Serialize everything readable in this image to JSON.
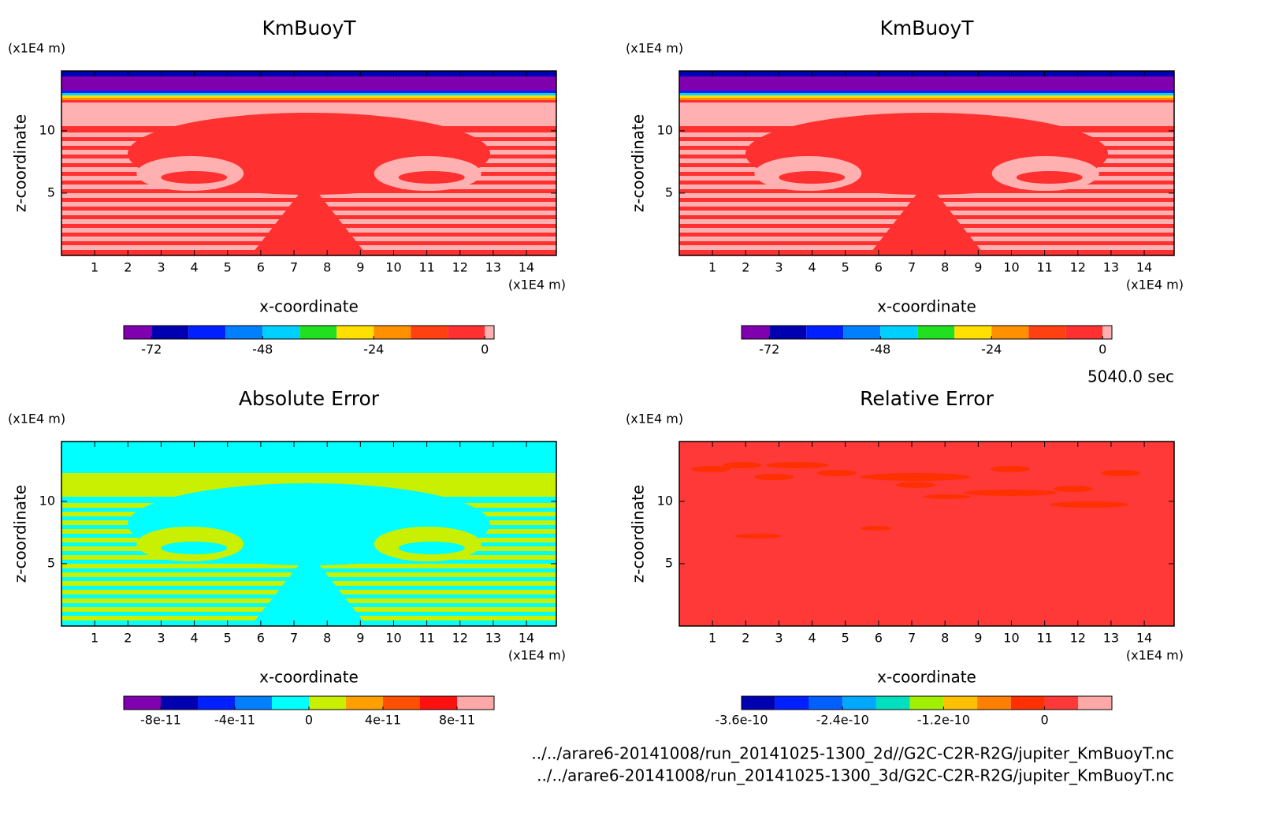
{
  "chart_data": [
    {
      "type": "contour",
      "title": "KmBuoyT",
      "xlabel": "x-coordinate",
      "ylabel": "z-coordinate",
      "xunit": "(x1E4 m)",
      "yunit": "(x1E4 m)",
      "xlim": [
        0,
        14.9
      ],
      "ylim": [
        0,
        14.8
      ],
      "xticks": [
        1,
        2,
        3,
        4,
        5,
        6,
        7,
        8,
        9,
        10,
        11,
        12,
        13,
        14
      ],
      "yticks": [
        5,
        10
      ],
      "colorbar": {
        "colors": [
          "#8000b0",
          "#0000b0",
          "#0020ff",
          "#0080ff",
          "#00d0ff",
          "#20e020",
          "#ffe000",
          "#ff9000",
          "#ff4010",
          "#ff3030",
          "#ffb0b0"
        ],
        "levels": [
          -78,
          -72,
          -64,
          -56,
          -48,
          -40,
          -32,
          -24,
          -16,
          -8,
          0,
          2
        ],
        "ticks": [
          -72,
          -48,
          -24,
          0
        ]
      }
    },
    {
      "type": "contour",
      "title": "KmBuoyT",
      "xlabel": "x-coordinate",
      "ylabel": "z-coordinate",
      "xunit": "(x1E4 m)",
      "yunit": "(x1E4 m)",
      "xlim": [
        0,
        14.9
      ],
      "ylim": [
        0,
        14.8
      ],
      "xticks": [
        1,
        2,
        3,
        4,
        5,
        6,
        7,
        8,
        9,
        10,
        11,
        12,
        13,
        14
      ],
      "yticks": [
        5,
        10
      ],
      "colorbar": {
        "colors": [
          "#8000b0",
          "#0000b0",
          "#0020ff",
          "#0080ff",
          "#00d0ff",
          "#20e020",
          "#ffe000",
          "#ff9000",
          "#ff4010",
          "#ff3030",
          "#ffb0b0"
        ],
        "levels": [
          -78,
          -72,
          -64,
          -56,
          -48,
          -40,
          -32,
          -24,
          -16,
          -8,
          0,
          2
        ],
        "ticks": [
          -72,
          -48,
          -24,
          0
        ]
      }
    },
    {
      "type": "contour",
      "title": "Absolute Error",
      "xlabel": "x-coordinate",
      "ylabel": "z-coordinate",
      "xunit": "(x1E4 m)",
      "yunit": "(x1E4 m)",
      "xlim": [
        0,
        14.9
      ],
      "ylim": [
        0,
        14.8
      ],
      "xticks": [
        1,
        2,
        3,
        4,
        5,
        6,
        7,
        8,
        9,
        10,
        11,
        12,
        13,
        14
      ],
      "yticks": [
        5,
        10
      ],
      "colorbar": {
        "colors": [
          "#8000b0",
          "#0000b0",
          "#0020ff",
          "#0080ff",
          "#00ffff",
          "#c8f000",
          "#ffa000",
          "#ff5000",
          "#ff1010",
          "#ffa8a8"
        ],
        "levels": [
          -1e-10,
          -8e-11,
          -6e-11,
          -4e-11,
          -2e-11,
          0,
          2e-11,
          4e-11,
          6e-11,
          8e-11,
          1e-10
        ],
        "ticks": [
          -8e-11,
          -4e-11,
          0,
          4e-11,
          8e-11
        ]
      }
    },
    {
      "type": "contour",
      "title": "Relative Error",
      "xlabel": "x-coordinate",
      "ylabel": "z-coordinate",
      "xunit": "(x1E4 m)",
      "yunit": "(x1E4 m)",
      "xlim": [
        0,
        14.9
      ],
      "ylim": [
        0,
        14.8
      ],
      "xticks": [
        1,
        2,
        3,
        4,
        5,
        6,
        7,
        8,
        9,
        10,
        11,
        12,
        13,
        14
      ],
      "yticks": [
        5,
        10
      ],
      "colorbar": {
        "colors": [
          "#0000b0",
          "#0020ff",
          "#0060ff",
          "#00a8ff",
          "#00e0c0",
          "#a0f000",
          "#ffc000",
          "#ff8000",
          "#ff3000",
          "#ff3838",
          "#ffa8a8"
        ],
        "levels": [
          -3.6e-10,
          -3.2e-10,
          -2.8e-10,
          -2.4e-10,
          -2e-10,
          -1.6e-10,
          -1.2e-10,
          -8e-11,
          -4e-11,
          0,
          4e-11,
          8e-11
        ],
        "ticks": [
          -3.6e-10,
          -2.4e-10,
          -1.2e-10,
          0
        ]
      }
    }
  ],
  "time": "5040.0 sec",
  "files": [
    "../../arare6-20141008/run_20141025-1300_2d//G2C-C2R-R2G/jupiter_KmBuoyT.nc",
    "../../arare6-20141008/run_20141025-1300_3d/G2C-C2R-R2G/jupiter_KmBuoyT.nc"
  ]
}
